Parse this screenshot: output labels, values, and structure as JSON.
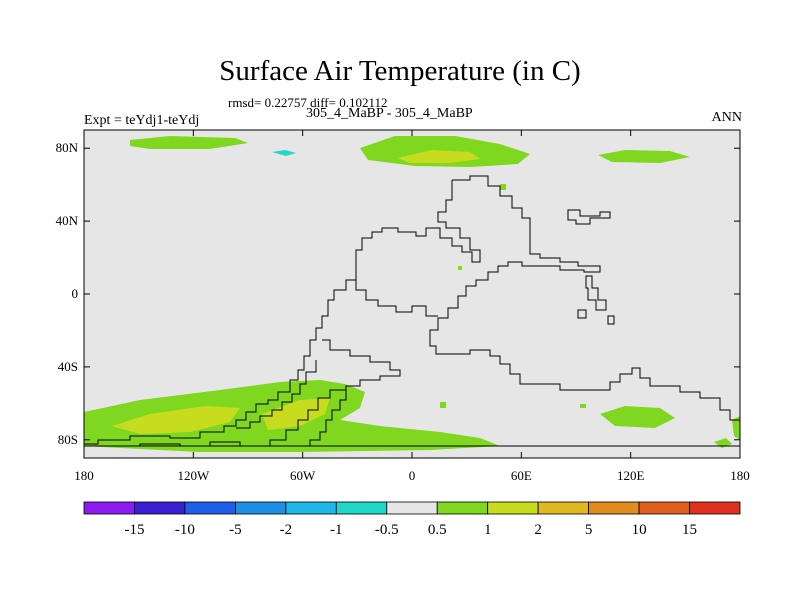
{
  "map": {
    "title": "Surface Air Temperature (in C)",
    "stats": "rmsd= 0.22757 diff= 0.102112",
    "subtitle": "305_4_MaBP - 305_4_MaBP",
    "experiment": "Expt = teYdj1-teYdj",
    "season": "ANN",
    "y_ticks": [
      {
        "label": "80N",
        "lat": 80
      },
      {
        "label": "40N",
        "lat": 40
      },
      {
        "label": "0",
        "lat": 0
      },
      {
        "label": "40S",
        "lat": -40
      },
      {
        "label": "80S",
        "lat": -80
      }
    ],
    "x_ticks": [
      {
        "label": "180",
        "lon": -180
      },
      {
        "label": "120W",
        "lon": -120
      },
      {
        "label": "60W",
        "lon": -60
      },
      {
        "label": "0",
        "lon": 0
      },
      {
        "label": "60E",
        "lon": 60
      },
      {
        "label": "120E",
        "lon": 120
      },
      {
        "label": "180",
        "lon": 180
      }
    ]
  },
  "colorbar": {
    "colors": [
      "#8c1cf0",
      "#3a1fd0",
      "#1f5ee6",
      "#1f8fe6",
      "#1fb8e6",
      "#1fd8c8",
      "#e6e6e6",
      "#7fd81f",
      "#c8dc1f",
      "#e0b81f",
      "#e08c1f",
      "#e0601f",
      "#e0301f"
    ],
    "labels": [
      "-15",
      "-10",
      "-5",
      "-2",
      "-1",
      "-0.5",
      "0.5",
      "1",
      "2",
      "5",
      "10",
      "15"
    ]
  }
}
